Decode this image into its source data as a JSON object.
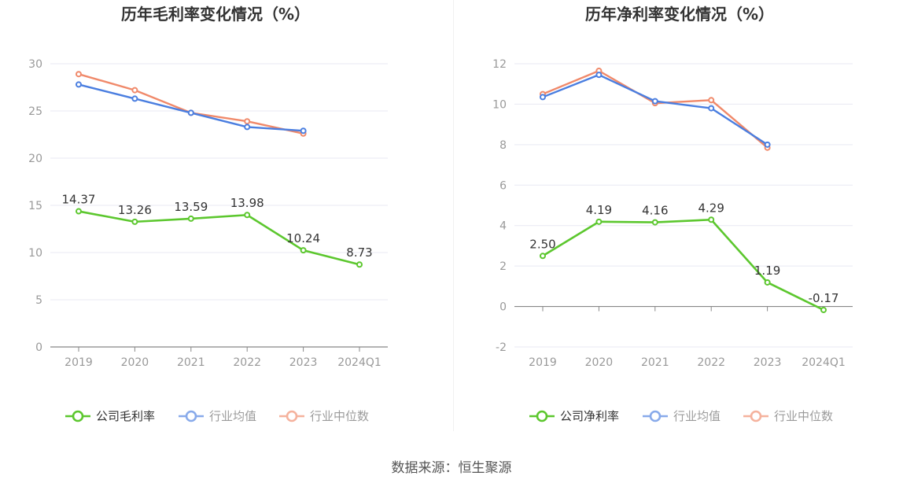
{
  "source_text": "数据来源：恒生聚源",
  "colors": {
    "company": "#5cc72e",
    "average": "#4a7ee0",
    "median": "#f0896a",
    "axis": "#999999",
    "grid": "#e8e9f3",
    "label": "#333333",
    "title": "#333333"
  },
  "chart_data": [
    {
      "type": "line",
      "title": "历年毛利率变化情况（%）",
      "categories": [
        "2019",
        "2020",
        "2021",
        "2022",
        "2023",
        "2024Q1"
      ],
      "ylim": [
        0,
        30
      ],
      "yticks": [
        0,
        5,
        10,
        15,
        20,
        25,
        30
      ],
      "grid": true,
      "legend_position": "bottom-center",
      "series": [
        {
          "name": "公司毛利率",
          "key": "company",
          "values": [
            14.37,
            13.26,
            13.59,
            13.98,
            10.24,
            8.73
          ],
          "labels": [
            "14.37",
            "13.26",
            "13.59",
            "13.98",
            "10.24",
            "8.73"
          ]
        },
        {
          "name": "行业均值",
          "key": "average",
          "values": [
            27.8,
            26.3,
            24.8,
            23.3,
            22.9,
            null
          ]
        },
        {
          "name": "行业中位数",
          "key": "median",
          "values": [
            28.9,
            27.2,
            24.8,
            23.9,
            22.6,
            null
          ]
        }
      ]
    },
    {
      "type": "line",
      "title": "历年净利率变化情况（%）",
      "categories": [
        "2019",
        "2020",
        "2021",
        "2022",
        "2023",
        "2024Q1"
      ],
      "ylim": [
        -2,
        12
      ],
      "yticks": [
        -2,
        0,
        2,
        4,
        6,
        8,
        10,
        12
      ],
      "grid": true,
      "legend_position": "bottom-center",
      "series": [
        {
          "name": "公司净利率",
          "key": "company",
          "values": [
            2.5,
            4.19,
            4.16,
            4.29,
            1.19,
            -0.17
          ],
          "labels": [
            "2.50",
            "4.19",
            "4.16",
            "4.29",
            "1.19",
            "-0.17"
          ]
        },
        {
          "name": "行业均值",
          "key": "average",
          "values": [
            10.35,
            11.45,
            10.15,
            9.8,
            8.0,
            null
          ]
        },
        {
          "name": "行业中位数",
          "key": "median",
          "values": [
            10.5,
            11.65,
            10.05,
            10.2,
            7.85,
            null
          ]
        }
      ]
    }
  ]
}
